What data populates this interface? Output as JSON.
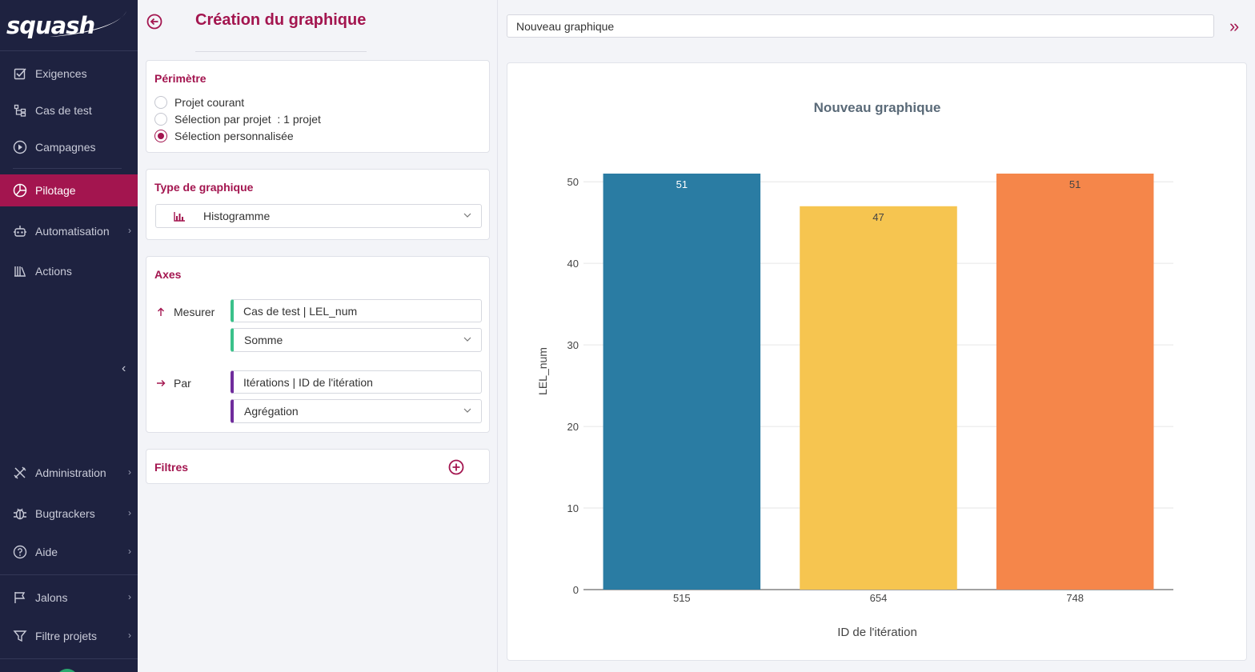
{
  "app": {
    "logo_text": "squash"
  },
  "sidebar": {
    "items": [
      {
        "label": "Exigences",
        "icon": "checkbox-icon"
      },
      {
        "label": "Cas de test",
        "icon": "tree-icon"
      },
      {
        "label": "Campagnes",
        "icon": "play-circle-icon"
      },
      {
        "label": "Pilotage",
        "icon": "pie-chart-icon",
        "active": true
      },
      {
        "label": "Automatisation",
        "icon": "robot-icon",
        "chevron": true
      },
      {
        "label": "Actions",
        "icon": "library-icon"
      },
      {
        "label": "Administration",
        "icon": "tools-icon",
        "chevron": true
      },
      {
        "label": "Bugtrackers",
        "icon": "bug-icon",
        "chevron": true
      },
      {
        "label": "Aide",
        "icon": "help-circle-icon",
        "chevron": true
      },
      {
        "label": "Jalons",
        "icon": "flag-icon",
        "chevron": true
      },
      {
        "label": "Filtre projets",
        "icon": "filter-icon",
        "chevron": true
      }
    ],
    "collapse_icon": "chevron-left-icon"
  },
  "editor": {
    "title": "Création du graphique",
    "perimeter": {
      "title": "Périmètre",
      "options": [
        {
          "label": "Projet courant",
          "checked": false
        },
        {
          "label": "Sélection par projet  : 1 projet",
          "checked": false
        },
        {
          "label": "Sélection personnalisée",
          "checked": true
        }
      ]
    },
    "chart_type": {
      "title": "Type de graphique",
      "value": "Histogramme",
      "icon": "bar-chart-icon"
    },
    "axes": {
      "title": "Axes",
      "measure_label": "Mesurer",
      "measure_field": "Cas de test | LEL_num",
      "measure_operation": "Somme",
      "by_label": "Par",
      "by_field": "Itérations | ID de l'itération",
      "by_operation": "Agrégation"
    },
    "filters": {
      "title": "Filtres"
    }
  },
  "chart_name_input": {
    "value": "Nouveau graphique"
  },
  "colors": {
    "accent": "#a3154f",
    "sidebar_bg": "#1e2240",
    "measure_axis": "#3ac18a",
    "by_axis": "#6f2c9c"
  },
  "chart_data": {
    "type": "bar",
    "title": "Nouveau graphique",
    "xlabel": "ID de l'itération",
    "ylabel": "LEL_num",
    "categories": [
      "515",
      "654",
      "748"
    ],
    "values": [
      51,
      47,
      51
    ],
    "colors": [
      "#2a7ca3",
      "#f6c550",
      "#f5864a"
    ],
    "ylim": [
      0,
      51
    ],
    "yticks": [
      0,
      10,
      20,
      30,
      40,
      50
    ],
    "grid": true,
    "data_labels": true
  }
}
